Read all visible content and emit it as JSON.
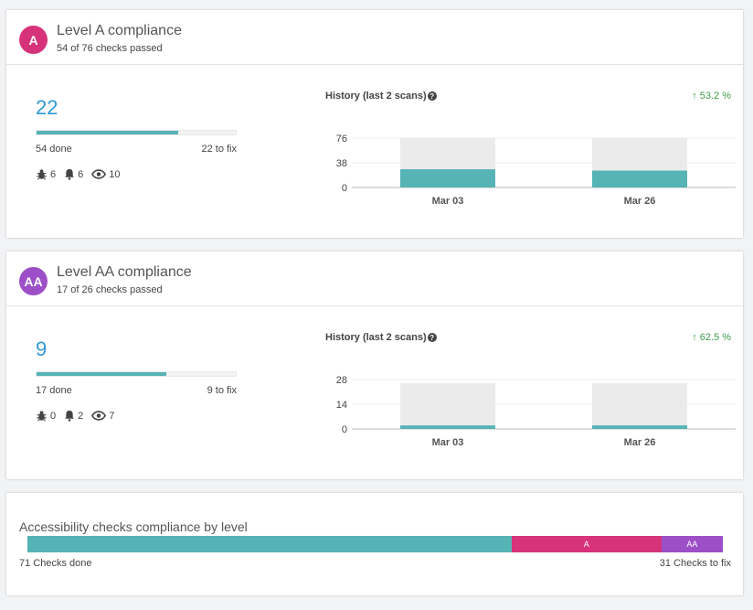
{
  "level_a": {
    "badge": "A",
    "badge_color": "#d6337a",
    "title": "Level A compliance",
    "subtitle": "54 of 76 checks passed",
    "to_fix_count": "22",
    "progress_fraction": 0.71,
    "done_label": "54 done",
    "fix_label": "22 to fix",
    "bugs": "6",
    "alerts": "6",
    "views": "10",
    "history_title": "History (last 2 scans)",
    "trend": "53.2 %",
    "chart_data": {
      "type": "bar",
      "categories": [
        "Mar 03",
        "Mar 26"
      ],
      "values": [
        28,
        26
      ],
      "totals": [
        76,
        76
      ],
      "yticks": [
        "76",
        "38",
        "0"
      ],
      "ylim": [
        0,
        76
      ]
    }
  },
  "level_aa": {
    "badge": "AA",
    "badge_color": "#9c4fc6",
    "title": "Level AA compliance",
    "subtitle": "17 of 26 checks passed",
    "to_fix_count": "9",
    "progress_fraction": 0.65,
    "done_label": "17 done",
    "fix_label": "9 to fix",
    "bugs": "0",
    "alerts": "2",
    "views": "7",
    "history_title": "History (last 2 scans)",
    "trend": "62.5 %",
    "chart_data": {
      "type": "bar",
      "categories": [
        "Mar 03",
        "Mar 26"
      ],
      "values": [
        2,
        2
      ],
      "totals": [
        26,
        26
      ],
      "yticks": [
        "28",
        "14",
        "0"
      ],
      "ylim": [
        0,
        28
      ]
    }
  },
  "summary": {
    "title": "Accessibility checks compliance by level",
    "done_label": "71 Checks done",
    "fix_label": "31 Checks to fix",
    "segments": [
      {
        "label": "",
        "value": 71,
        "color": "#56b3b6"
      },
      {
        "label": "A",
        "value": 22,
        "color": "#d6337a"
      },
      {
        "label": "AA",
        "value": 9,
        "color": "#9c4fc6"
      }
    ]
  },
  "colors": {
    "bar": "#56b3b6",
    "bar_bg": "#ebebeb",
    "trend": "#3f9b4b",
    "count": "#2f97d4"
  },
  "icons": {
    "bugs": "bug-icon",
    "alerts": "bell-icon",
    "views": "eye-icon",
    "help": "question-circle-icon",
    "trend": "arrow-up-icon"
  }
}
